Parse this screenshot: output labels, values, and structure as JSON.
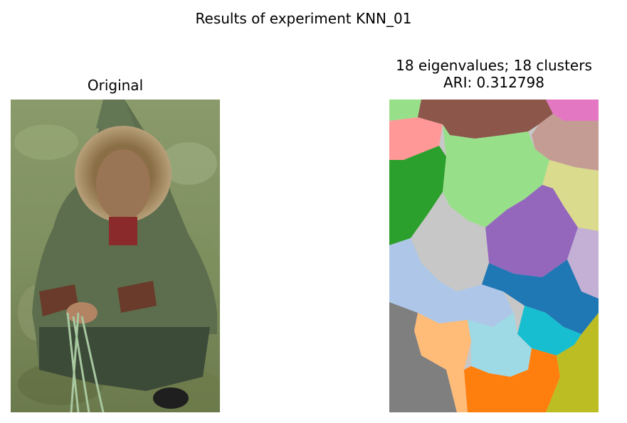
{
  "figure": {
    "suptitle": "Results of experiment KNN_01"
  },
  "left_panel": {
    "title": "Original"
  },
  "right_panel": {
    "title_line1": "18 eigenvalues; 18 clusters",
    "title_line2": "ARI: 0.312798",
    "cluster_colors": [
      "#8c564b",
      "#e377c2",
      "#ff9896",
      "#98df8a",
      "#c49c94",
      "#2ca02c",
      "#dbdb8d",
      "#9467bd",
      "#c7c7c7",
      "#aec7e8",
      "#c5b0d5",
      "#1f77b4",
      "#17becf",
      "#7f7f7f",
      "#ffbb78",
      "#9edae5",
      "#ff7f0e",
      "#bcbd22"
    ]
  }
}
